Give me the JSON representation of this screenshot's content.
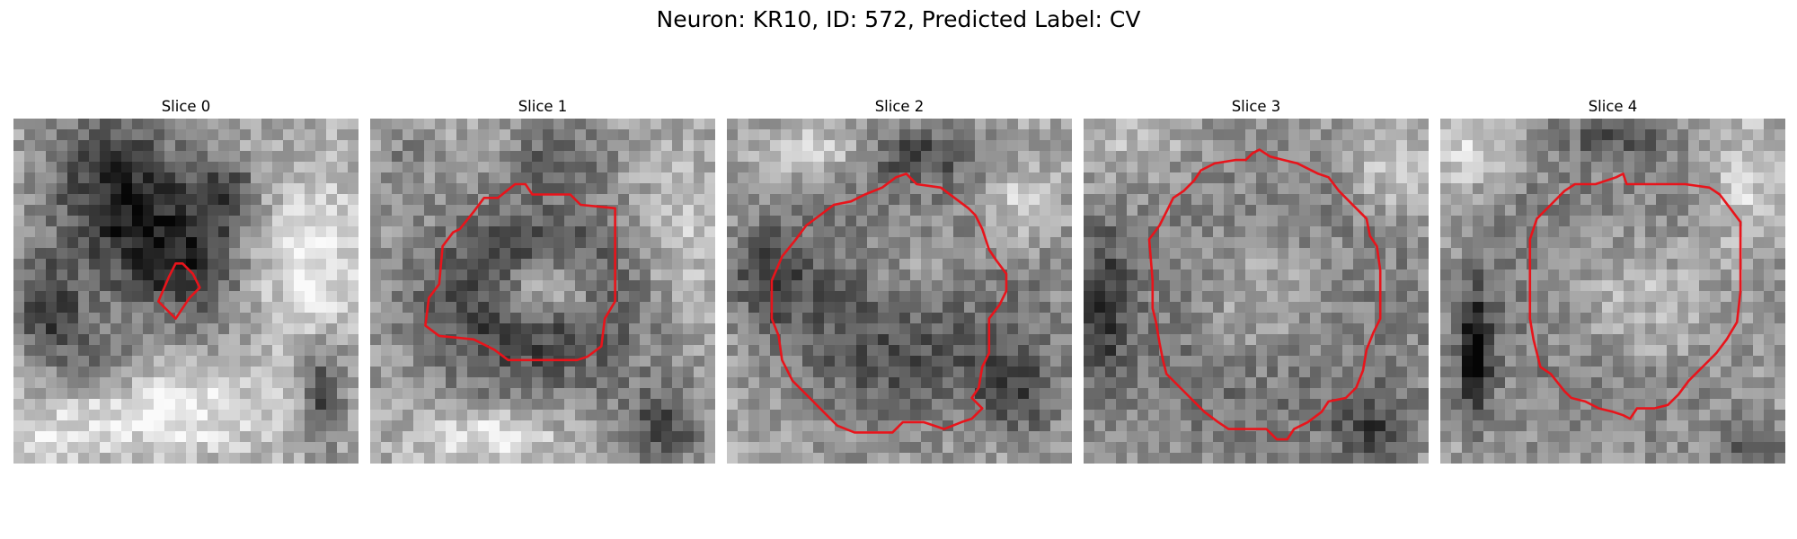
{
  "figure": {
    "title": "Neuron: KR10, ID: 572, Predicted Label: CV"
  },
  "panels": [
    {
      "label": "Slice 0",
      "seed": 11,
      "dark_blobs": [
        [
          0.3,
          0.2,
          0.2,
          0.22,
          0.5
        ],
        [
          0.48,
          0.42,
          0.2,
          0.18,
          0.45
        ],
        [
          0.1,
          0.55,
          0.1,
          0.14,
          0.45
        ],
        [
          0.62,
          0.22,
          0.1,
          0.1,
          0.35
        ],
        [
          0.9,
          0.8,
          0.06,
          0.14,
          0.4
        ],
        [
          0.25,
          0.7,
          0.12,
          0.1,
          0.25
        ]
      ],
      "light_blobs": [
        [
          0.85,
          0.4,
          0.16,
          0.22,
          0.3
        ],
        [
          0.45,
          0.85,
          0.3,
          0.12,
          0.3
        ],
        [
          0.1,
          0.95,
          0.12,
          0.1,
          0.2
        ]
      ],
      "contour": [
        [
          0.47,
          0.42
        ],
        [
          0.49,
          0.42
        ],
        [
          0.52,
          0.45
        ],
        [
          0.54,
          0.49
        ],
        [
          0.51,
          0.52
        ],
        [
          0.47,
          0.58
        ],
        [
          0.42,
          0.53
        ],
        [
          0.45,
          0.46
        ]
      ]
    },
    {
      "label": "Slice 1",
      "seed": 23,
      "dark_blobs": [
        [
          0.47,
          0.52,
          0.34,
          0.27,
          0.55
        ],
        [
          0.55,
          0.1,
          0.14,
          0.1,
          0.25
        ],
        [
          0.85,
          0.9,
          0.12,
          0.12,
          0.35
        ],
        [
          0.1,
          0.12,
          0.08,
          0.1,
          0.15
        ]
      ],
      "light_blobs": [
        [
          0.51,
          0.5,
          0.15,
          0.1,
          0.55
        ],
        [
          0.9,
          0.35,
          0.12,
          0.2,
          0.2
        ],
        [
          0.35,
          0.92,
          0.2,
          0.08,
          0.3
        ]
      ],
      "contour": [
        [
          0.42,
          0.19
        ],
        [
          0.45,
          0.19
        ],
        [
          0.47,
          0.22
        ],
        [
          0.58,
          0.22
        ],
        [
          0.61,
          0.25
        ],
        [
          0.71,
          0.26
        ],
        [
          0.71,
          0.53
        ],
        [
          0.68,
          0.58
        ],
        [
          0.67,
          0.66
        ],
        [
          0.63,
          0.69
        ],
        [
          0.6,
          0.7
        ],
        [
          0.4,
          0.7
        ],
        [
          0.36,
          0.67
        ],
        [
          0.3,
          0.64
        ],
        [
          0.2,
          0.63
        ],
        [
          0.16,
          0.6
        ],
        [
          0.17,
          0.52
        ],
        [
          0.2,
          0.48
        ],
        [
          0.21,
          0.37
        ],
        [
          0.24,
          0.33
        ],
        [
          0.26,
          0.32
        ],
        [
          0.3,
          0.27
        ],
        [
          0.33,
          0.23
        ],
        [
          0.37,
          0.23
        ]
      ]
    },
    {
      "label": "Slice 2",
      "seed": 37,
      "dark_blobs": [
        [
          0.52,
          0.52,
          0.37,
          0.33,
          0.55
        ],
        [
          0.12,
          0.45,
          0.1,
          0.14,
          0.3
        ],
        [
          0.85,
          0.8,
          0.12,
          0.12,
          0.3
        ],
        [
          0.55,
          0.1,
          0.2,
          0.08,
          0.3
        ]
      ],
      "light_blobs": [
        [
          0.55,
          0.45,
          0.22,
          0.18,
          0.45
        ],
        [
          0.3,
          0.1,
          0.15,
          0.08,
          0.25
        ],
        [
          0.85,
          0.25,
          0.1,
          0.12,
          0.25
        ]
      ],
      "contour": [
        [
          0.45,
          0.2
        ],
        [
          0.49,
          0.17
        ],
        [
          0.52,
          0.16
        ],
        [
          0.55,
          0.19
        ],
        [
          0.62,
          0.2
        ],
        [
          0.66,
          0.23
        ],
        [
          0.7,
          0.26
        ],
        [
          0.72,
          0.28
        ],
        [
          0.74,
          0.32
        ],
        [
          0.76,
          0.38
        ],
        [
          0.78,
          0.41
        ],
        [
          0.81,
          0.45
        ],
        [
          0.81,
          0.5
        ],
        [
          0.79,
          0.54
        ],
        [
          0.76,
          0.58
        ],
        [
          0.76,
          0.68
        ],
        [
          0.74,
          0.72
        ],
        [
          0.73,
          0.78
        ],
        [
          0.71,
          0.81
        ],
        [
          0.74,
          0.84
        ],
        [
          0.71,
          0.87
        ],
        [
          0.68,
          0.88
        ],
        [
          0.63,
          0.9
        ],
        [
          0.57,
          0.88
        ],
        [
          0.51,
          0.88
        ],
        [
          0.48,
          0.91
        ],
        [
          0.37,
          0.91
        ],
        [
          0.32,
          0.89
        ],
        [
          0.28,
          0.85
        ],
        [
          0.24,
          0.81
        ],
        [
          0.19,
          0.76
        ],
        [
          0.16,
          0.7
        ],
        [
          0.15,
          0.63
        ],
        [
          0.13,
          0.58
        ],
        [
          0.13,
          0.47
        ],
        [
          0.16,
          0.4
        ],
        [
          0.2,
          0.35
        ],
        [
          0.23,
          0.31
        ],
        [
          0.27,
          0.28
        ],
        [
          0.31,
          0.25
        ],
        [
          0.36,
          0.24
        ],
        [
          0.4,
          0.22
        ]
      ]
    },
    {
      "label": "Slice 3",
      "seed": 53,
      "dark_blobs": [
        [
          0.53,
          0.55,
          0.43,
          0.4,
          0.5
        ],
        [
          0.05,
          0.55,
          0.08,
          0.25,
          0.35
        ],
        [
          0.15,
          0.1,
          0.1,
          0.08,
          0.2
        ],
        [
          0.85,
          0.9,
          0.12,
          0.1,
          0.3
        ]
      ],
      "light_blobs": [
        [
          0.53,
          0.52,
          0.27,
          0.25,
          0.5
        ],
        [
          0.15,
          0.08,
          0.12,
          0.1,
          0.3
        ],
        [
          0.88,
          0.15,
          0.12,
          0.12,
          0.2
        ]
      ],
      "contour": [
        [
          0.49,
          0.1
        ],
        [
          0.51,
          0.09
        ],
        [
          0.54,
          0.11
        ],
        [
          0.58,
          0.12
        ],
        [
          0.62,
          0.13
        ],
        [
          0.68,
          0.16
        ],
        [
          0.71,
          0.17
        ],
        [
          0.74,
          0.21
        ],
        [
          0.77,
          0.24
        ],
        [
          0.82,
          0.29
        ],
        [
          0.83,
          0.34
        ],
        [
          0.85,
          0.37
        ],
        [
          0.86,
          0.44
        ],
        [
          0.86,
          0.58
        ],
        [
          0.84,
          0.62
        ],
        [
          0.82,
          0.67
        ],
        [
          0.81,
          0.73
        ],
        [
          0.79,
          0.78
        ],
        [
          0.76,
          0.81
        ],
        [
          0.71,
          0.82
        ],
        [
          0.69,
          0.85
        ],
        [
          0.65,
          0.88
        ],
        [
          0.61,
          0.9
        ],
        [
          0.59,
          0.93
        ],
        [
          0.56,
          0.93
        ],
        [
          0.53,
          0.9
        ],
        [
          0.49,
          0.9
        ],
        [
          0.42,
          0.9
        ],
        [
          0.39,
          0.88
        ],
        [
          0.35,
          0.85
        ],
        [
          0.32,
          0.82
        ],
        [
          0.28,
          0.78
        ],
        [
          0.24,
          0.74
        ],
        [
          0.23,
          0.7
        ],
        [
          0.22,
          0.65
        ],
        [
          0.21,
          0.59
        ],
        [
          0.2,
          0.55
        ],
        [
          0.2,
          0.47
        ],
        [
          0.19,
          0.35
        ],
        [
          0.22,
          0.31
        ],
        [
          0.24,
          0.27
        ],
        [
          0.26,
          0.23
        ],
        [
          0.29,
          0.21
        ],
        [
          0.32,
          0.18
        ],
        [
          0.34,
          0.15
        ],
        [
          0.38,
          0.13
        ],
        [
          0.44,
          0.12
        ],
        [
          0.47,
          0.12
        ]
      ]
    },
    {
      "label": "Slice 4",
      "seed": 71,
      "dark_blobs": [
        [
          0.1,
          0.68,
          0.05,
          0.18,
          0.55
        ],
        [
          0.5,
          0.52,
          0.42,
          0.4,
          0.4
        ],
        [
          0.52,
          0.05,
          0.18,
          0.06,
          0.25
        ],
        [
          0.9,
          0.95,
          0.1,
          0.08,
          0.3
        ]
      ],
      "light_blobs": [
        [
          0.55,
          0.52,
          0.27,
          0.24,
          0.45
        ],
        [
          0.88,
          0.2,
          0.1,
          0.2,
          0.25
        ],
        [
          0.08,
          0.1,
          0.1,
          0.1,
          0.25
        ]
      ],
      "contour": [
        [
          0.51,
          0.17
        ],
        [
          0.53,
          0.16
        ],
        [
          0.54,
          0.19
        ],
        [
          0.66,
          0.19
        ],
        [
          0.71,
          0.19
        ],
        [
          0.78,
          0.2
        ],
        [
          0.81,
          0.22
        ],
        [
          0.84,
          0.26
        ],
        [
          0.87,
          0.3
        ],
        [
          0.87,
          0.5
        ],
        [
          0.86,
          0.59
        ],
        [
          0.83,
          0.64
        ],
        [
          0.8,
          0.68
        ],
        [
          0.76,
          0.72
        ],
        [
          0.72,
          0.76
        ],
        [
          0.69,
          0.8
        ],
        [
          0.66,
          0.83
        ],
        [
          0.62,
          0.84
        ],
        [
          0.57,
          0.84
        ],
        [
          0.55,
          0.87
        ],
        [
          0.53,
          0.86
        ],
        [
          0.5,
          0.85
        ],
        [
          0.46,
          0.84
        ],
        [
          0.42,
          0.82
        ],
        [
          0.38,
          0.81
        ],
        [
          0.36,
          0.79
        ],
        [
          0.32,
          0.74
        ],
        [
          0.29,
          0.72
        ],
        [
          0.27,
          0.64
        ],
        [
          0.26,
          0.58
        ],
        [
          0.26,
          0.35
        ],
        [
          0.28,
          0.29
        ],
        [
          0.32,
          0.25
        ],
        [
          0.36,
          0.21
        ],
        [
          0.39,
          0.19
        ],
        [
          0.45,
          0.19
        ]
      ]
    }
  ],
  "colors": {
    "contour": "#e8141b",
    "dark": "#000000",
    "light": "#ffffff"
  }
}
